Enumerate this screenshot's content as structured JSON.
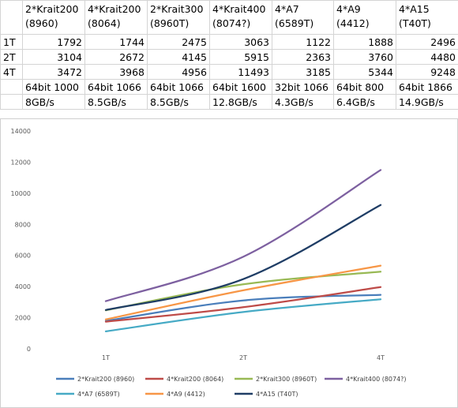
{
  "table": {
    "headers": [
      {
        "line1": "",
        "line2": ""
      },
      {
        "line1": "2*Krait200",
        "line2": "(8960)"
      },
      {
        "line1": "4*Krait200",
        "line2": "(8064)"
      },
      {
        "line1": "2*Krait300",
        "line2": "(8960T)"
      },
      {
        "line1": "4*Krait400",
        "line2": "(8074?)"
      },
      {
        "line1": "4*A7",
        "line2": "(6589T)"
      },
      {
        "line1": "4*A9",
        "line2": "(4412)"
      },
      {
        "line1": "4*A15",
        "line2": "(T40T)"
      }
    ],
    "rows": [
      {
        "label": "1T",
        "values": [
          "1792",
          "1744",
          "2475",
          "3063",
          "1122",
          "1888",
          "2496"
        ]
      },
      {
        "label": "2T",
        "values": [
          "3104",
          "2672",
          "4145",
          "5915",
          "2363",
          "3760",
          "4480"
        ]
      },
      {
        "label": "4T",
        "values": [
          "3472",
          "3968",
          "4956",
          "11493",
          "3185",
          "5344",
          "9248"
        ]
      }
    ],
    "memory_rows": [
      {
        "label": "",
        "values": [
          "64bit 1000",
          "64bit 1066",
          "64bit 1066",
          "64bit 1600",
          "32bit 1066",
          "64bit 800",
          "64bit 1866"
        ]
      },
      {
        "label": "",
        "values": [
          "8GB/s",
          "8.5GB/s",
          "8.5GB/s",
          "12.8GB/s",
          "4.3GB/s",
          "6.4GB/s",
          "14.9GB/s"
        ]
      }
    ]
  },
  "chart_data": {
    "type": "line",
    "title": "",
    "xlabel": "",
    "ylabel": "",
    "categories": [
      "1T",
      "2T",
      "4T"
    ],
    "ylim": [
      0,
      14000
    ],
    "yticks": [
      "0",
      "2000",
      "4000",
      "6000",
      "8000",
      "10000",
      "12000",
      "14000"
    ],
    "grid": false,
    "legend_position": "bottom",
    "series": [
      {
        "name": "2*Krait200 (8960)",
        "values": [
          1792,
          3104,
          3472
        ],
        "color": "#4A7EBB"
      },
      {
        "name": "4*Krait200 (8064)",
        "values": [
          1744,
          2672,
          3968
        ],
        "color": "#BE4B48"
      },
      {
        "name": "2*Krait300 (8960T)",
        "values": [
          2475,
          4145,
          4956
        ],
        "color": "#98B954"
      },
      {
        "name": "4*Krait400 (8074?)",
        "values": [
          3063,
          5915,
          11493
        ],
        "color": "#7D60A0"
      },
      {
        "name": "4*A7 (6589T)",
        "values": [
          1122,
          2363,
          3185
        ],
        "color": "#46AAC5"
      },
      {
        "name": "4*A9 (4412)",
        "values": [
          1888,
          3760,
          5344
        ],
        "color": "#F79646"
      },
      {
        "name": "4*A15 (T40T)",
        "values": [
          2496,
          4480,
          9248
        ],
        "color": "#1F3D65"
      }
    ]
  }
}
